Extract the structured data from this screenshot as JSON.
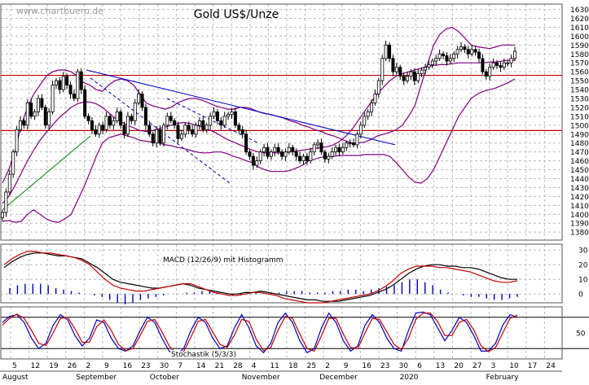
{
  "chart_data": [
    {
      "type": "candlestick",
      "title": "Gold US$/Unze",
      "watermark": "www.chartbuero.de",
      "y_ticks": [
        1380,
        1390,
        1400,
        1410,
        1420,
        1430,
        1440,
        1450,
        1460,
        1470,
        1480,
        1490,
        1500,
        1510,
        1520,
        1530,
        1540,
        1550,
        1560,
        1570,
        1580,
        1590,
        1600,
        1610,
        1620,
        1630
      ],
      "ylim": [
        1371,
        1636
      ],
      "grid": true,
      "horizontal_lines": [
        {
          "value": 1556,
          "color": "#c00000"
        },
        {
          "value": 1494,
          "color": "#c00000"
        }
      ],
      "series": [
        {
          "name": "close",
          "values": [
            1402,
            1425,
            1445,
            1470,
            1495,
            1505,
            1500,
            1525,
            1510,
            1515,
            1530,
            1520,
            1500,
            1515,
            1545,
            1550,
            1540,
            1555,
            1545,
            1535,
            1530,
            1560,
            1540,
            1510,
            1505,
            1495,
            1490,
            1500,
            1495,
            1510,
            1500,
            1505,
            1515,
            1500,
            1490,
            1510,
            1505,
            1525,
            1535,
            1520,
            1500,
            1490,
            1480,
            1495,
            1480,
            1500,
            1510,
            1505,
            1500,
            1485,
            1490,
            1500,
            1495,
            1490,
            1500,
            1505,
            1495,
            1500,
            1510,
            1515,
            1505,
            1500,
            1510,
            1512,
            1515,
            1500,
            1495,
            1490,
            1470,
            1465,
            1455,
            1460,
            1470,
            1475,
            1465,
            1470,
            1475,
            1470,
            1465,
            1470,
            1475,
            1470,
            1465,
            1460,
            1465,
            1460,
            1470,
            1478,
            1480,
            1470,
            1462,
            1465,
            1470,
            1475,
            1470,
            1475,
            1480,
            1480,
            1478,
            1490,
            1500,
            1510,
            1515,
            1525,
            1535,
            1550,
            1575,
            1590,
            1575,
            1560,
            1565,
            1555,
            1550,
            1555,
            1560,
            1550,
            1558,
            1562,
            1565,
            1568,
            1572,
            1575,
            1580,
            1578,
            1572,
            1575,
            1580,
            1585,
            1588,
            1585,
            1580,
            1585,
            1582,
            1575,
            1560,
            1555,
            1565,
            1570,
            1567,
            1565,
            1570,
            1570,
            1575,
            1583
          ]
        },
        {
          "name": "Bollinger upper",
          "values": [
            1435,
            1450,
            1470,
            1500,
            1520,
            1535,
            1545,
            1555,
            1560,
            1562,
            1562,
            1560,
            1555,
            1548,
            1545,
            1540,
            1538,
            1545,
            1550,
            1552,
            1550,
            1545,
            1535,
            1525,
            1522,
            1520,
            1518,
            1520,
            1525,
            1528,
            1530,
            1530,
            1528,
            1525,
            1522,
            1520,
            1518,
            1518,
            1520,
            1520,
            1518,
            1515,
            1513,
            1512,
            1510,
            1508,
            1505,
            1503,
            1500,
            1498,
            1495,
            1493,
            1490,
            1488,
            1485,
            1482,
            1480,
            1480,
            1481,
            1484,
            1488,
            1490,
            1492,
            1495,
            1500,
            1510,
            1522,
            1545,
            1568,
            1590,
            1602,
            1608,
            1610,
            1605,
            1598,
            1590,
            1588,
            1587,
            1586,
            1588,
            1590,
            1590,
            1590
          ]
        },
        {
          "name": "Bollinger lower",
          "values": [
            1392,
            1393,
            1391,
            1392,
            1400,
            1405,
            1400,
            1395,
            1392,
            1391,
            1395,
            1400,
            1415,
            1430,
            1447,
            1465,
            1480,
            1486,
            1488,
            1490,
            1488,
            1486,
            1483,
            1482,
            1481,
            1480,
            1478,
            1477,
            1475,
            1474,
            1472,
            1470,
            1469,
            1469,
            1470,
            1470,
            1468,
            1465,
            1463,
            1460,
            1458,
            1453,
            1450,
            1448,
            1448,
            1448,
            1449,
            1452,
            1455,
            1460,
            1462,
            1464,
            1465,
            1465,
            1466,
            1466,
            1466,
            1466,
            1467,
            1467,
            1467,
            1467,
            1465,
            1458,
            1450,
            1442,
            1436,
            1435,
            1440,
            1450,
            1465,
            1480,
            1495,
            1510,
            1520,
            1530,
            1535,
            1538,
            1540,
            1542,
            1545,
            1548,
            1552
          ]
        },
        {
          "name": "Bollinger middle",
          "values": [
            1412,
            1420,
            1432,
            1446,
            1460,
            1472,
            1483,
            1492,
            1500,
            1508,
            1514,
            1520,
            1524,
            1526,
            1526,
            1524,
            1520,
            1514,
            1508,
            1504,
            1500,
            1497,
            1494,
            1493,
            1494,
            1496,
            1498,
            1500,
            1502,
            1503,
            1502,
            1500,
            1498,
            1495,
            1492,
            1488,
            1484,
            1481,
            1478,
            1475,
            1472,
            1470,
            1469,
            1469,
            1469,
            1469,
            1470,
            1471,
            1472,
            1473,
            1474,
            1475,
            1476,
            1478,
            1482,
            1488,
            1496,
            1506,
            1516,
            1526,
            1535,
            1543,
            1550,
            1555,
            1558,
            1560,
            1562,
            1564,
            1566,
            1567,
            1568,
            1568,
            1569,
            1570,
            1570,
            1570,
            1570,
            1570,
            1571,
            1571,
            1572,
            1573,
            1573
          ]
        }
      ],
      "trendlines": [
        {
          "color": "#0000c0",
          "style": "solid",
          "from": [
            1562,
            "Sep 3"
          ],
          "to": [
            1478,
            "Dec 24"
          ]
        },
        {
          "color": "#0000c0",
          "style": "dashed",
          "from": [
            1553,
            "Sep 5"
          ],
          "to": [
            1435,
            "Oct 21"
          ]
        },
        {
          "color": "#0000c0",
          "style": "dashed",
          "from": [
            1530,
            "Oct 7"
          ],
          "to": [
            1480,
            "Nov 4"
          ]
        },
        {
          "color": "#008000",
          "style": "solid",
          "from": [
            1405,
            "Aug 1"
          ],
          "to": [
            1488,
            "Sep 5"
          ]
        }
      ]
    },
    {
      "type": "line",
      "title": "MACD (12/26/9) mit Histogramm",
      "y_ticks": [
        0,
        10,
        20,
        30
      ],
      "ylim": [
        -6,
        34
      ],
      "series": [
        {
          "name": "MACD",
          "color": "#000000",
          "values": [
            18,
            22,
            25,
            27,
            28,
            28,
            27,
            26,
            26,
            25,
            24,
            21,
            18,
            14,
            10,
            8,
            7,
            6,
            5,
            4,
            4,
            5,
            6,
            7,
            6,
            4,
            3,
            2,
            1,
            0,
            0,
            1,
            1,
            2,
            1,
            0,
            -1,
            -2,
            -3,
            -4,
            -4,
            -5,
            -5,
            -5,
            -4,
            -3,
            -2,
            -1,
            1,
            3,
            6,
            10,
            14,
            17,
            19,
            20,
            20,
            19,
            19,
            18,
            18,
            17,
            15,
            13,
            11,
            10,
            10
          ]
        },
        {
          "name": "Signal",
          "color": "#c00000",
          "values": [
            20,
            24,
            27,
            29,
            29,
            28,
            28,
            27,
            26,
            25,
            23,
            20,
            15,
            10,
            6,
            4,
            3,
            2,
            2,
            3,
            4,
            5,
            6,
            7,
            7,
            5,
            3,
            1,
            0,
            -1,
            -1,
            0,
            1,
            1,
            0,
            -1,
            -3,
            -4,
            -5,
            -6,
            -6,
            -6,
            -5,
            -4,
            -3,
            -2,
            -1,
            0,
            2,
            5,
            9,
            14,
            17,
            19,
            19,
            19,
            18,
            18,
            17,
            16,
            15,
            13,
            11,
            9,
            8,
            8,
            9
          ]
        },
        {
          "name": "Histogramm",
          "color": "#0000c0",
          "values": [
            4,
            6,
            7,
            7,
            7,
            6,
            4,
            3,
            2,
            1,
            0,
            -1,
            -2,
            -4,
            -6,
            -7,
            -6,
            -4,
            -3,
            -2,
            -1,
            0,
            0,
            1,
            1,
            2,
            2,
            1,
            0,
            -1,
            -1,
            0,
            1,
            1,
            1,
            1,
            2,
            2,
            2,
            1,
            1,
            1,
            2,
            2,
            3,
            3,
            2,
            3,
            4,
            5,
            6,
            8,
            10,
            10,
            8,
            6,
            3,
            1,
            0,
            -1,
            -2,
            -2,
            -3,
            -4,
            -4,
            -3,
            -2
          ]
        }
      ]
    },
    {
      "type": "line",
      "title": "Stochastik (5/3/3)",
      "y_ticks": [
        50
      ],
      "ylim": [
        0,
        100
      ],
      "horizontal_lines": [
        {
          "value": 80
        },
        {
          "value": 20
        }
      ],
      "series": [
        {
          "name": "%K",
          "color": "#0000c0",
          "values": [
            70,
            82,
            85,
            70,
            40,
            20,
            30,
            65,
            85,
            75,
            45,
            25,
            40,
            75,
            70,
            40,
            20,
            15,
            25,
            55,
            80,
            70,
            40,
            15,
            8,
            20,
            55,
            80,
            70,
            40,
            20,
            25,
            60,
            85,
            60,
            25,
            12,
            30,
            70,
            88,
            70,
            35,
            12,
            20,
            60,
            88,
            70,
            35,
            15,
            25,
            65,
            85,
            70,
            40,
            20,
            15,
            55,
            88,
            90,
            85,
            60,
            35,
            55,
            80,
            70,
            45,
            15,
            15,
            30,
            65,
            85,
            80
          ]
        },
        {
          "name": "%D",
          "color": "#c00000",
          "values": [
            65,
            78,
            86,
            78,
            55,
            30,
            26,
            50,
            78,
            80,
            58,
            32,
            32,
            62,
            75,
            55,
            28,
            16,
            20,
            45,
            72,
            76,
            52,
            25,
            10,
            14,
            42,
            72,
            76,
            52,
            28,
            22,
            46,
            76,
            72,
            38,
            16,
            22,
            55,
            82,
            78,
            48,
            20,
            15,
            45,
            78,
            78,
            48,
            22,
            20,
            50,
            78,
            76,
            52,
            28,
            18,
            40,
            76,
            88,
            88,
            72,
            45,
            45,
            70,
            76,
            56,
            25,
            14,
            22,
            50,
            78,
            84
          ]
        }
      ]
    },
    {
      "type": "axis",
      "x_tick_labels": [
        "5",
        "12",
        "19",
        "26",
        "2",
        "9",
        "16",
        "23",
        "30",
        "7",
        "14",
        "21",
        "28",
        "4",
        "11",
        "18",
        "25",
        "2",
        "9",
        "16",
        "23",
        "30",
        "6",
        "13",
        "20",
        "27",
        "3",
        "10",
        "17",
        "24"
      ],
      "month_labels": [
        "August",
        "September",
        "October",
        "November",
        "December",
        "2020",
        "February"
      ]
    }
  ],
  "colors": {
    "grid": "#bcbcbc",
    "frame": "#555555",
    "price": "#000000",
    "candle_up": "#ffffff",
    "bollinger": "#800080",
    "support_resistance": "#c00000",
    "trend_blue": "#0000c0",
    "trend_green": "#008000",
    "watermark": "#999999"
  }
}
